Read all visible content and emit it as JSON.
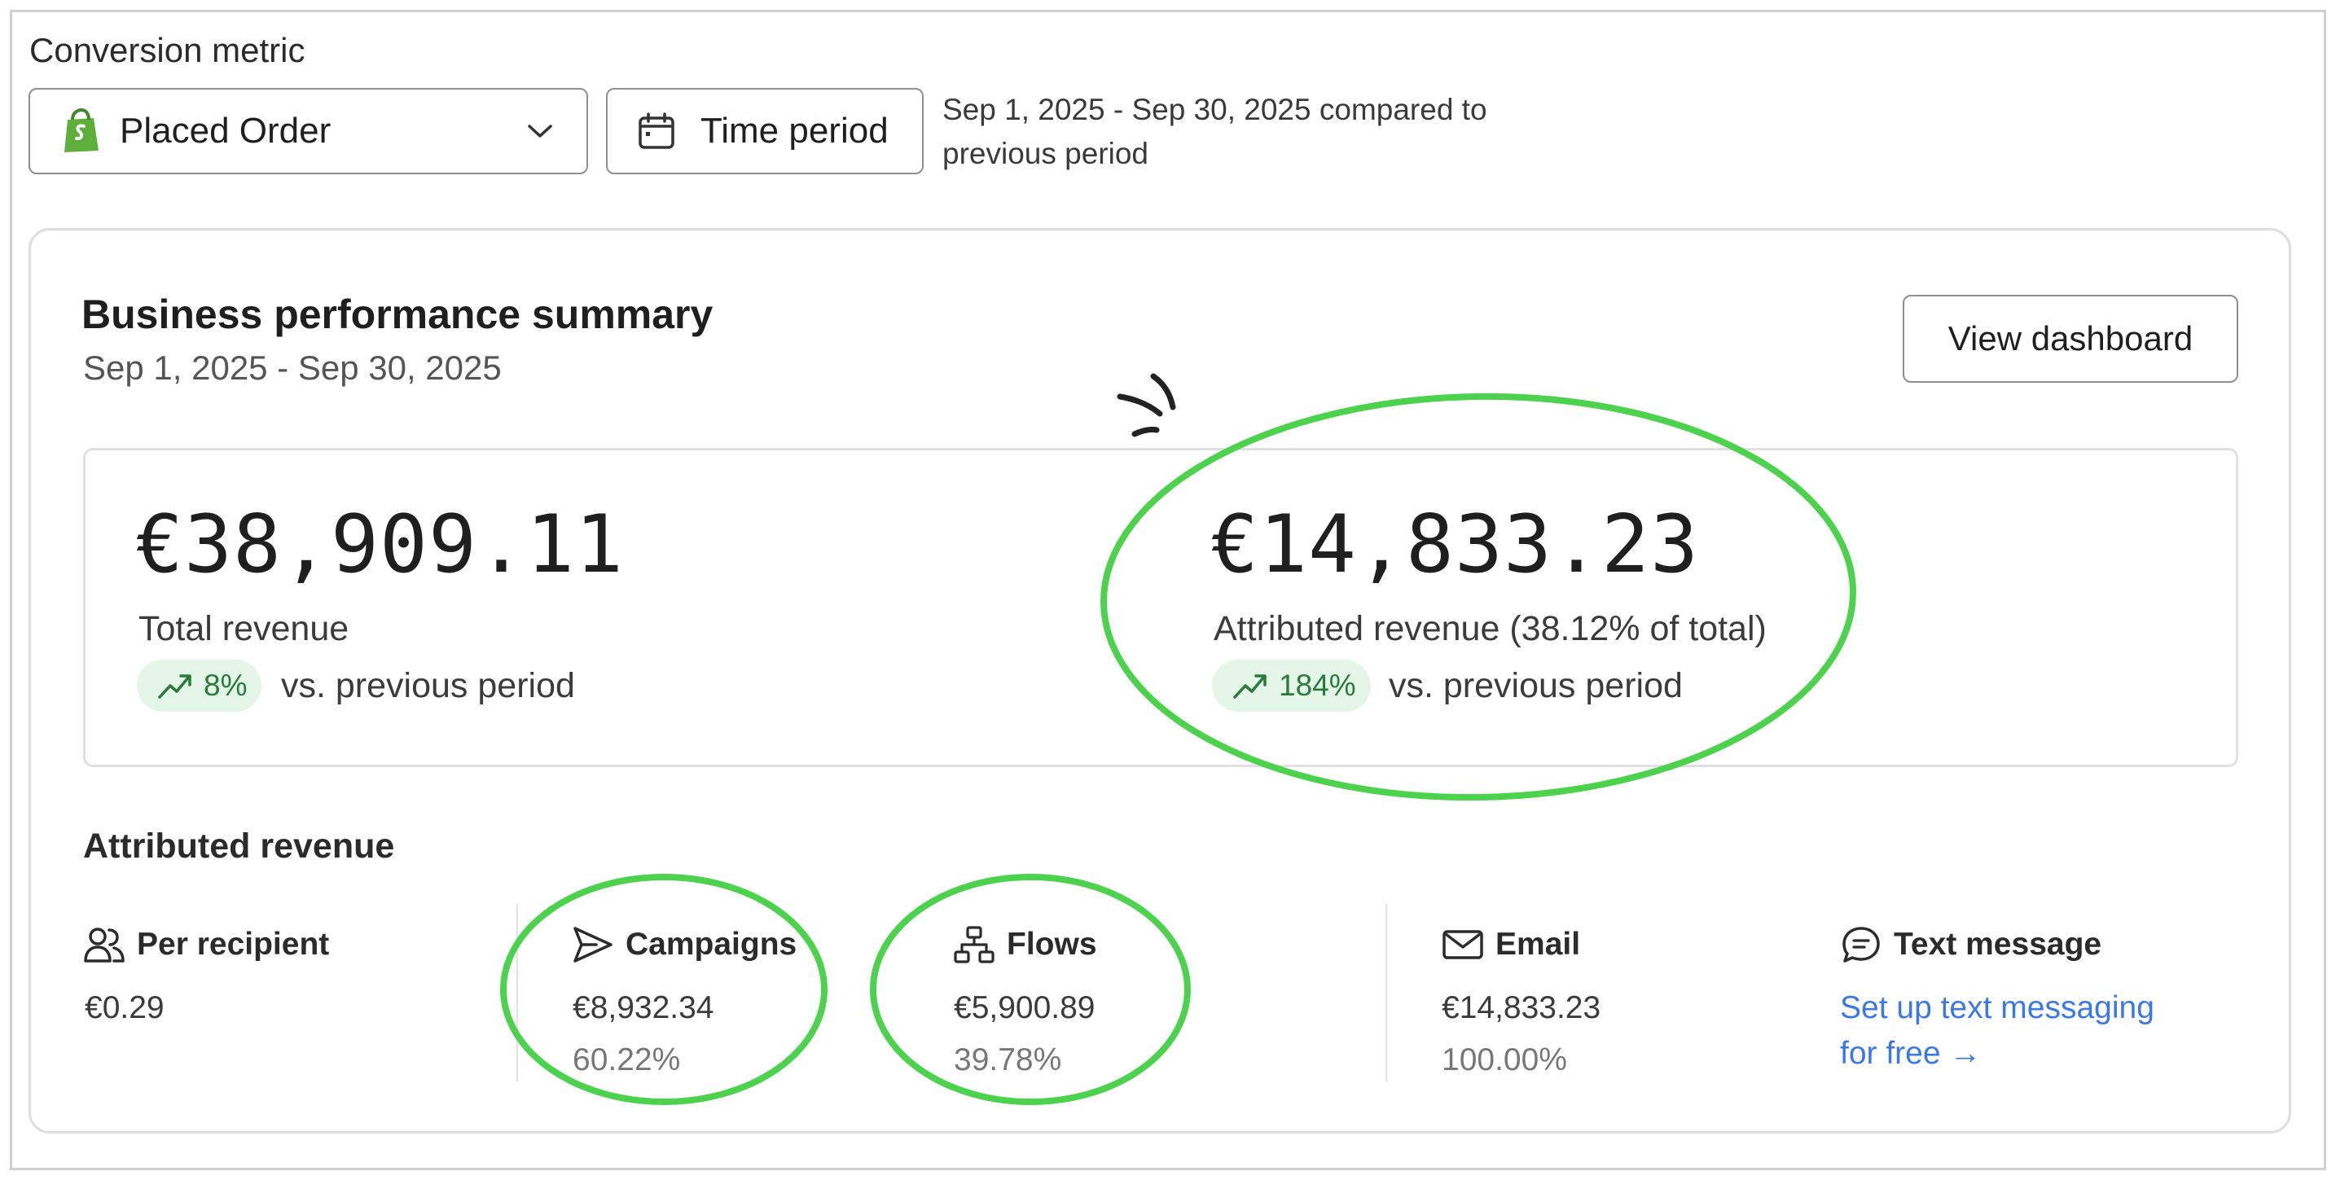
{
  "conversion": {
    "label": "Conversion metric",
    "selected": "Placed Order",
    "time_button": "Time period",
    "period_desc": "Sep 1, 2025 - Sep 30, 2025 compared to previous period"
  },
  "summary": {
    "title": "Business performance summary",
    "range": "Sep 1, 2025 - Sep 30, 2025",
    "view_button": "View dashboard",
    "total": {
      "value": "€38,909.11",
      "label": "Total revenue",
      "trend": "8%",
      "trend_suffix": "vs. previous period"
    },
    "attributed": {
      "value": "€14,833.23",
      "label": "Attributed revenue (38.12% of total)",
      "trend": "184%",
      "trend_suffix": "vs. previous period"
    }
  },
  "attributed_revenue": {
    "heading": "Attributed revenue",
    "per_recipient": {
      "label": "Per recipient",
      "value": "€0.29"
    },
    "campaigns": {
      "label": "Campaigns",
      "value": "€8,932.34",
      "pct": "60.22%"
    },
    "flows": {
      "label": "Flows",
      "value": "€5,900.89",
      "pct": "39.78%"
    },
    "email": {
      "label": "Email",
      "value": "€14,833.23",
      "pct": "100.00%"
    },
    "text_message": {
      "label": "Text message",
      "link": "Set up text messaging for free",
      "arrow": "→"
    }
  },
  "icons": {
    "dropdown": "shopify-bag-icon",
    "time": "calendar-icon",
    "trend": "trend-up-icon",
    "per_recipient": "users-icon",
    "campaigns": "send-icon",
    "flows": "flow-icon",
    "email": "envelope-icon",
    "text_message": "chat-icon"
  },
  "colors": {
    "trend_bg": "#e3f6e7",
    "trend_fg": "#2a7a3b",
    "link": "#3b78e7",
    "annotation": "#4cd24c"
  }
}
